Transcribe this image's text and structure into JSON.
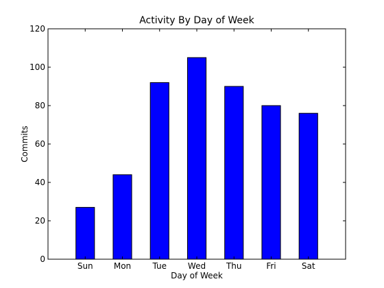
{
  "chart_data": {
    "type": "bar",
    "title": "Activity By Day of Week",
    "xlabel": "Day of Week",
    "ylabel": "Commits",
    "categories": [
      "Sun",
      "Mon",
      "Tue",
      "Wed",
      "Thu",
      "Fri",
      "Sat"
    ],
    "values": [
      27,
      44,
      92,
      105,
      90,
      80,
      76
    ],
    "ylim": [
      0,
      120
    ],
    "yticks": [
      0,
      20,
      40,
      60,
      80,
      100,
      120
    ],
    "grid": false,
    "legend": "none",
    "colors": {
      "bar": "#0000ff",
      "bar_edge": "#000000",
      "axes": "#000000",
      "background": "#ffffff"
    }
  }
}
